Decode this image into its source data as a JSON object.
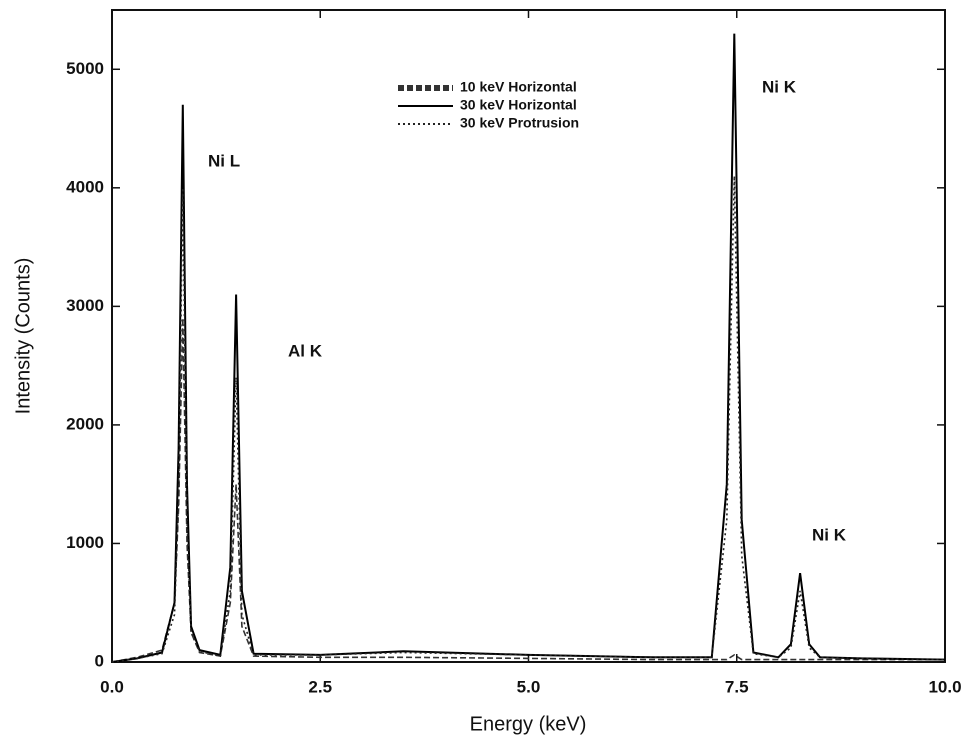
{
  "chart_data": {
    "type": "line",
    "xlabel": "Energy (keV)",
    "ylabel": "Intensity (Counts)",
    "x": [
      0,
      0.3,
      0.6,
      0.75,
      0.8,
      0.85,
      0.9,
      0.95,
      1.05,
      1.3,
      1.42,
      1.49,
      1.56,
      1.7,
      2.5,
      3.5,
      5.0,
      6.5,
      7.2,
      7.38,
      7.47,
      7.56,
      7.7,
      8.0,
      8.15,
      8.26,
      8.37,
      8.5,
      9.0,
      10.0
    ],
    "series": [
      {
        "name": "10 keV Horizontal",
        "color": "#333333",
        "style": "dashed",
        "values": [
          0,
          40,
          100,
          500,
          1300,
          2900,
          1000,
          250,
          80,
          50,
          500,
          1500,
          300,
          50,
          40,
          40,
          30,
          20,
          20,
          20,
          60,
          20,
          20,
          20,
          20,
          20,
          20,
          20,
          20,
          20
        ]
      },
      {
        "name": "30 keV Horizontal",
        "color": "#000000",
        "style": "solid",
        "values": [
          0,
          30,
          80,
          500,
          1800,
          4700,
          1500,
          300,
          100,
          60,
          800,
          3100,
          600,
          70,
          60,
          90,
          60,
          40,
          40,
          1500,
          5300,
          1200,
          80,
          40,
          150,
          750,
          150,
          40,
          30,
          20
        ]
      },
      {
        "name": "30 keV Protrusion",
        "color": "#222222",
        "style": "dotted",
        "values": [
          0,
          30,
          70,
          400,
          1400,
          4000,
          1200,
          250,
          90,
          50,
          600,
          2400,
          400,
          60,
          60,
          80,
          60,
          40,
          40,
          1200,
          4100,
          900,
          70,
          40,
          120,
          600,
          120,
          40,
          30,
          20
        ]
      }
    ],
    "annotations": [
      "Ni L",
      "Al K",
      "Ni K",
      "Ni K"
    ],
    "xlim": [
      0,
      10
    ],
    "xticks": [
      {
        "value": 0,
        "label": "0.0"
      },
      2.5,
      {
        "value": 5,
        "label": "5.0"
      },
      7.5,
      {
        "value": 10,
        "label": "10.0"
      }
    ],
    "ylim": [
      0,
      5500
    ],
    "yticks": [
      0,
      1000,
      2000,
      3000,
      4000,
      5000
    ],
    "grid": false,
    "legend": "upper center"
  }
}
